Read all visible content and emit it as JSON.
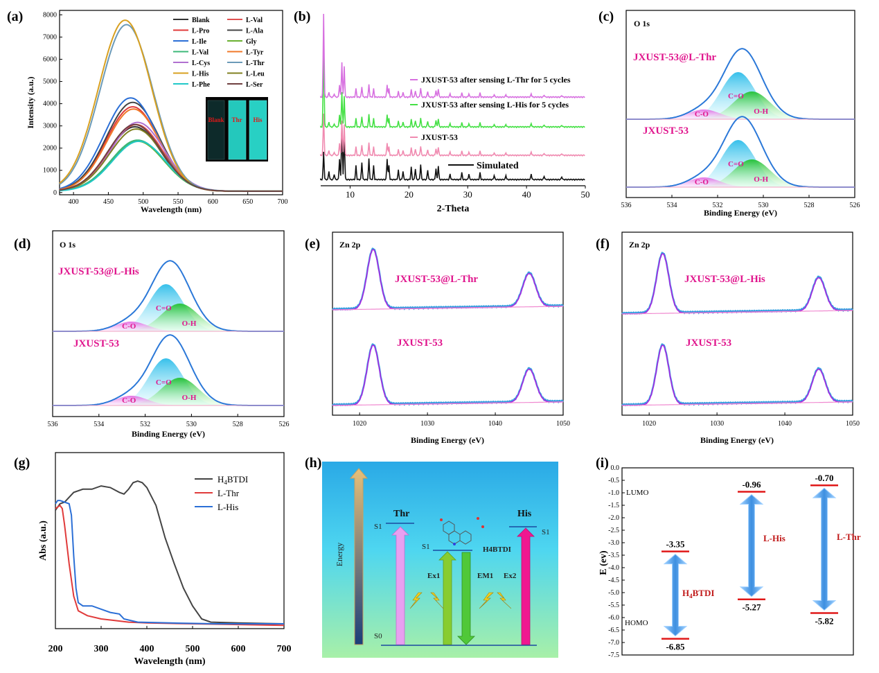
{
  "colors": {
    "pink": "#e0409a",
    "magenta": "#e0158d",
    "black": "#222222",
    "red": "#e03a3a",
    "blue": "#2b6fd6",
    "cyan": "#20c8d8",
    "green": "#3cc83c",
    "fitMagenta": "#b020e0",
    "expBlue": "#3aa0e0",
    "orchid": "#d770e0",
    "bright_green": "#44e044",
    "light_pink": "#f08ab0"
  },
  "chart_data": [
    {
      "id": "a",
      "panel_label": "(a)",
      "type": "line",
      "xlabel": "Wavelength (nm)",
      "ylabel": "Intensity (a.u.)",
      "xlim": [
        380,
        700
      ],
      "ylim": [
        -100,
        8200
      ],
      "xticks": [
        400,
        450,
        500,
        550,
        600,
        650,
        700
      ],
      "yticks": [
        0,
        1000,
        2000,
        3000,
        4000,
        5000,
        6000,
        7000,
        8000
      ],
      "x_peak_model": "gaussian",
      "series": [
        {
          "name": "Blank",
          "peak": 2900,
          "center": 488,
          "color": "#333333"
        },
        {
          "name": "L-Val",
          "peak": 3000,
          "center": 490,
          "color": "#e05050"
        },
        {
          "name": "L-Pro",
          "peak": 3800,
          "center": 485,
          "color": "#e03a3a"
        },
        {
          "name": "L-Ala",
          "peak": 4000,
          "center": 485,
          "color": "#444444"
        },
        {
          "name": "L-Ile",
          "peak": 4200,
          "center": 482,
          "color": "#2b6fd6"
        },
        {
          "name": "Gly",
          "peak": 2250,
          "center": 492,
          "color": "#6ab030"
        },
        {
          "name": "L-Val",
          "peak": 2300,
          "center": 492,
          "color": "#3cb878"
        },
        {
          "name": "L-Tyr",
          "peak": 3700,
          "center": 486,
          "color": "#f07828"
        },
        {
          "name": "L-Cys",
          "peak": 3100,
          "center": 492,
          "color": "#b070d0"
        },
        {
          "name": "L-Thr",
          "peak": 7500,
          "center": 476,
          "color": "#6b9ab8"
        },
        {
          "name": "L-His",
          "peak": 7700,
          "center": 474,
          "color": "#d8a020"
        },
        {
          "name": "L-Leu",
          "peak": 2800,
          "center": 490,
          "color": "#808020"
        },
        {
          "name": "L-Phe",
          "peak": 2250,
          "center": 494,
          "color": "#20c8c8"
        },
        {
          "name": "L-Ser",
          "peak": 3000,
          "center": 488,
          "color": "#704040"
        }
      ],
      "inset_labels": [
        "Blank",
        "Thr",
        "His"
      ]
    },
    {
      "id": "b",
      "panel_label": "(b)",
      "type": "line",
      "xlabel": "2-Theta",
      "ylabel": "",
      "xlim": [
        5,
        50
      ],
      "xticks": [
        10,
        20,
        30,
        40,
        50
      ],
      "series": [
        {
          "name": "Simulated",
          "color": "#111111"
        },
        {
          "name": "JXUST-53",
          "color": "#f08ab0"
        },
        {
          "name": "JXUST-53 after sensing L-His for 5 cycles",
          "color": "#44e044"
        },
        {
          "name": "JXUST-53 after sensing L-Thr for 5 cycles",
          "color": "#d770e0"
        }
      ],
      "peak_positions": [
        5.5,
        6.4,
        7.3,
        8.2,
        8.6,
        9.0,
        11.0,
        12.0,
        13.2,
        14.0,
        16.3,
        16.6,
        18.2,
        19.0,
        20.4,
        21.1,
        22.0,
        23.2,
        24.6,
        25.0,
        27.0,
        29.0,
        30.2,
        32.1,
        34.5,
        36.5,
        40.8,
        43.0,
        46.0
      ]
    },
    {
      "id": "c",
      "panel_label": "(c)",
      "type": "line",
      "title": "O 1s",
      "xlabel": "Binding Energy (eV)",
      "xlim": [
        536,
        526
      ],
      "xticks": [
        536,
        534,
        532,
        530,
        528,
        526
      ],
      "top_label": "JXUST-53@L-Thr",
      "bottom_label": "JXUST-53",
      "components": [
        "C=O",
        "O-H",
        "C-O"
      ]
    },
    {
      "id": "d",
      "panel_label": "(d)",
      "type": "line",
      "title": "O 1s",
      "xlabel": "Binding Energy (eV)",
      "xlim": [
        536,
        526
      ],
      "xticks": [
        536,
        534,
        532,
        530,
        528,
        526
      ],
      "top_label": "JXUST-53@L-His",
      "bottom_label": "JXUST-53",
      "components": [
        "C=O",
        "O-H",
        "C-O"
      ]
    },
    {
      "id": "e",
      "panel_label": "(e)",
      "type": "line",
      "title": "Zn 2p",
      "xlabel": "Binding Energy (eV)",
      "xlim": [
        1016,
        1050
      ],
      "xticks": [
        1020,
        1030,
        1040,
        1050
      ],
      "top_label": "JXUST-53@L-Thr",
      "bottom_label": "JXUST-53",
      "peaks": [
        1022,
        1045
      ]
    },
    {
      "id": "f",
      "panel_label": "(f)",
      "type": "line",
      "title": "Zn 2p",
      "xlabel": "Binding Energy (eV)",
      "xlim": [
        1016,
        1050
      ],
      "xticks": [
        1020,
        1030,
        1040,
        1050
      ],
      "top_label": "JXUST-53@L-His",
      "bottom_label": "JXUST-53",
      "peaks": [
        1022,
        1045
      ]
    },
    {
      "id": "g",
      "panel_label": "(g)",
      "type": "line",
      "xlabel": "Wavelength (nm)",
      "ylabel": "Abs (a.u.)",
      "xlim": [
        200,
        700
      ],
      "xticks": [
        200,
        300,
        400,
        500,
        600,
        700
      ],
      "series": [
        {
          "name": "H4BTDI",
          "legend_main": "H",
          "legend_sub": "4",
          "legend_rest": "BTDI",
          "color": "#444444",
          "points": [
            [
              200,
              0.73
            ],
            [
              210,
              0.77
            ],
            [
              220,
              0.78
            ],
            [
              240,
              0.84
            ],
            [
              260,
              0.86
            ],
            [
              280,
              0.86
            ],
            [
              300,
              0.88
            ],
            [
              320,
              0.87
            ],
            [
              340,
              0.84
            ],
            [
              350,
              0.83
            ],
            [
              360,
              0.86
            ],
            [
              370,
              0.9
            ],
            [
              380,
              0.91
            ],
            [
              390,
              0.9
            ],
            [
              400,
              0.87
            ],
            [
              420,
              0.76
            ],
            [
              440,
              0.56
            ],
            [
              460,
              0.4
            ],
            [
              480,
              0.25
            ],
            [
              500,
              0.14
            ],
            [
              520,
              0.06
            ],
            [
              540,
              0.04
            ],
            [
              600,
              0.035
            ],
            [
              700,
              0.03
            ]
          ]
        },
        {
          "name": "L-Thr",
          "color": "#e03a3a",
          "points": [
            [
              200,
              0.74
            ],
            [
              210,
              0.76
            ],
            [
              215,
              0.74
            ],
            [
              220,
              0.64
            ],
            [
              230,
              0.4
            ],
            [
              240,
              0.2
            ],
            [
              250,
              0.11
            ],
            [
              270,
              0.08
            ],
            [
              300,
              0.06
            ],
            [
              330,
              0.05
            ],
            [
              360,
              0.04
            ],
            [
              400,
              0.035
            ],
            [
              500,
              0.03
            ],
            [
              700,
              0.02
            ]
          ]
        },
        {
          "name": "L-His",
          "color": "#2b6fd6",
          "points": [
            [
              200,
              0.77
            ],
            [
              205,
              0.79
            ],
            [
              210,
              0.79
            ],
            [
              220,
              0.78
            ],
            [
              230,
              0.77
            ],
            [
              235,
              0.7
            ],
            [
              240,
              0.45
            ],
            [
              245,
              0.25
            ],
            [
              250,
              0.16
            ],
            [
              260,
              0.14
            ],
            [
              280,
              0.14
            ],
            [
              300,
              0.12
            ],
            [
              320,
              0.1
            ],
            [
              340,
              0.09
            ],
            [
              350,
              0.06
            ],
            [
              380,
              0.04
            ],
            [
              450,
              0.035
            ],
            [
              550,
              0.03
            ],
            [
              700,
              0.03
            ]
          ]
        }
      ]
    },
    {
      "id": "h",
      "panel_label": "(h)",
      "type": "diagram",
      "energy_label": "Energy",
      "thr_label": "Thr",
      "his_label": "His",
      "s1": "S1",
      "s0": "S0",
      "h4btdi": "H4BTDI",
      "ex1": "Ex1",
      "em1": "EM1",
      "ex2": "Ex2"
    },
    {
      "id": "i",
      "panel_label": "(i)",
      "type": "bar",
      "ylabel": "E (ev)",
      "ylim": [
        -7.5,
        0.0
      ],
      "yticks": [
        0.0,
        -0.5,
        -1.0,
        -1.5,
        -2.0,
        -2.5,
        -3.0,
        -3.5,
        -4.0,
        -4.5,
        -5.0,
        -5.5,
        -6.0,
        -6.5,
        -7.0,
        -7.5
      ],
      "lumo_label": "LUMO",
      "homo_label": "HOMO",
      "categories": [
        "H4BTDI",
        "L-His",
        "L-Thr"
      ],
      "lumo": [
        -3.35,
        -0.96,
        -0.7
      ],
      "homo": [
        -6.85,
        -5.27,
        -5.82
      ],
      "lumo_labels": [
        "-3.35",
        "-0.96",
        "-0.70"
      ],
      "homo_labels": [
        "-6.85",
        "-5.27",
        "-5.82"
      ]
    }
  ]
}
